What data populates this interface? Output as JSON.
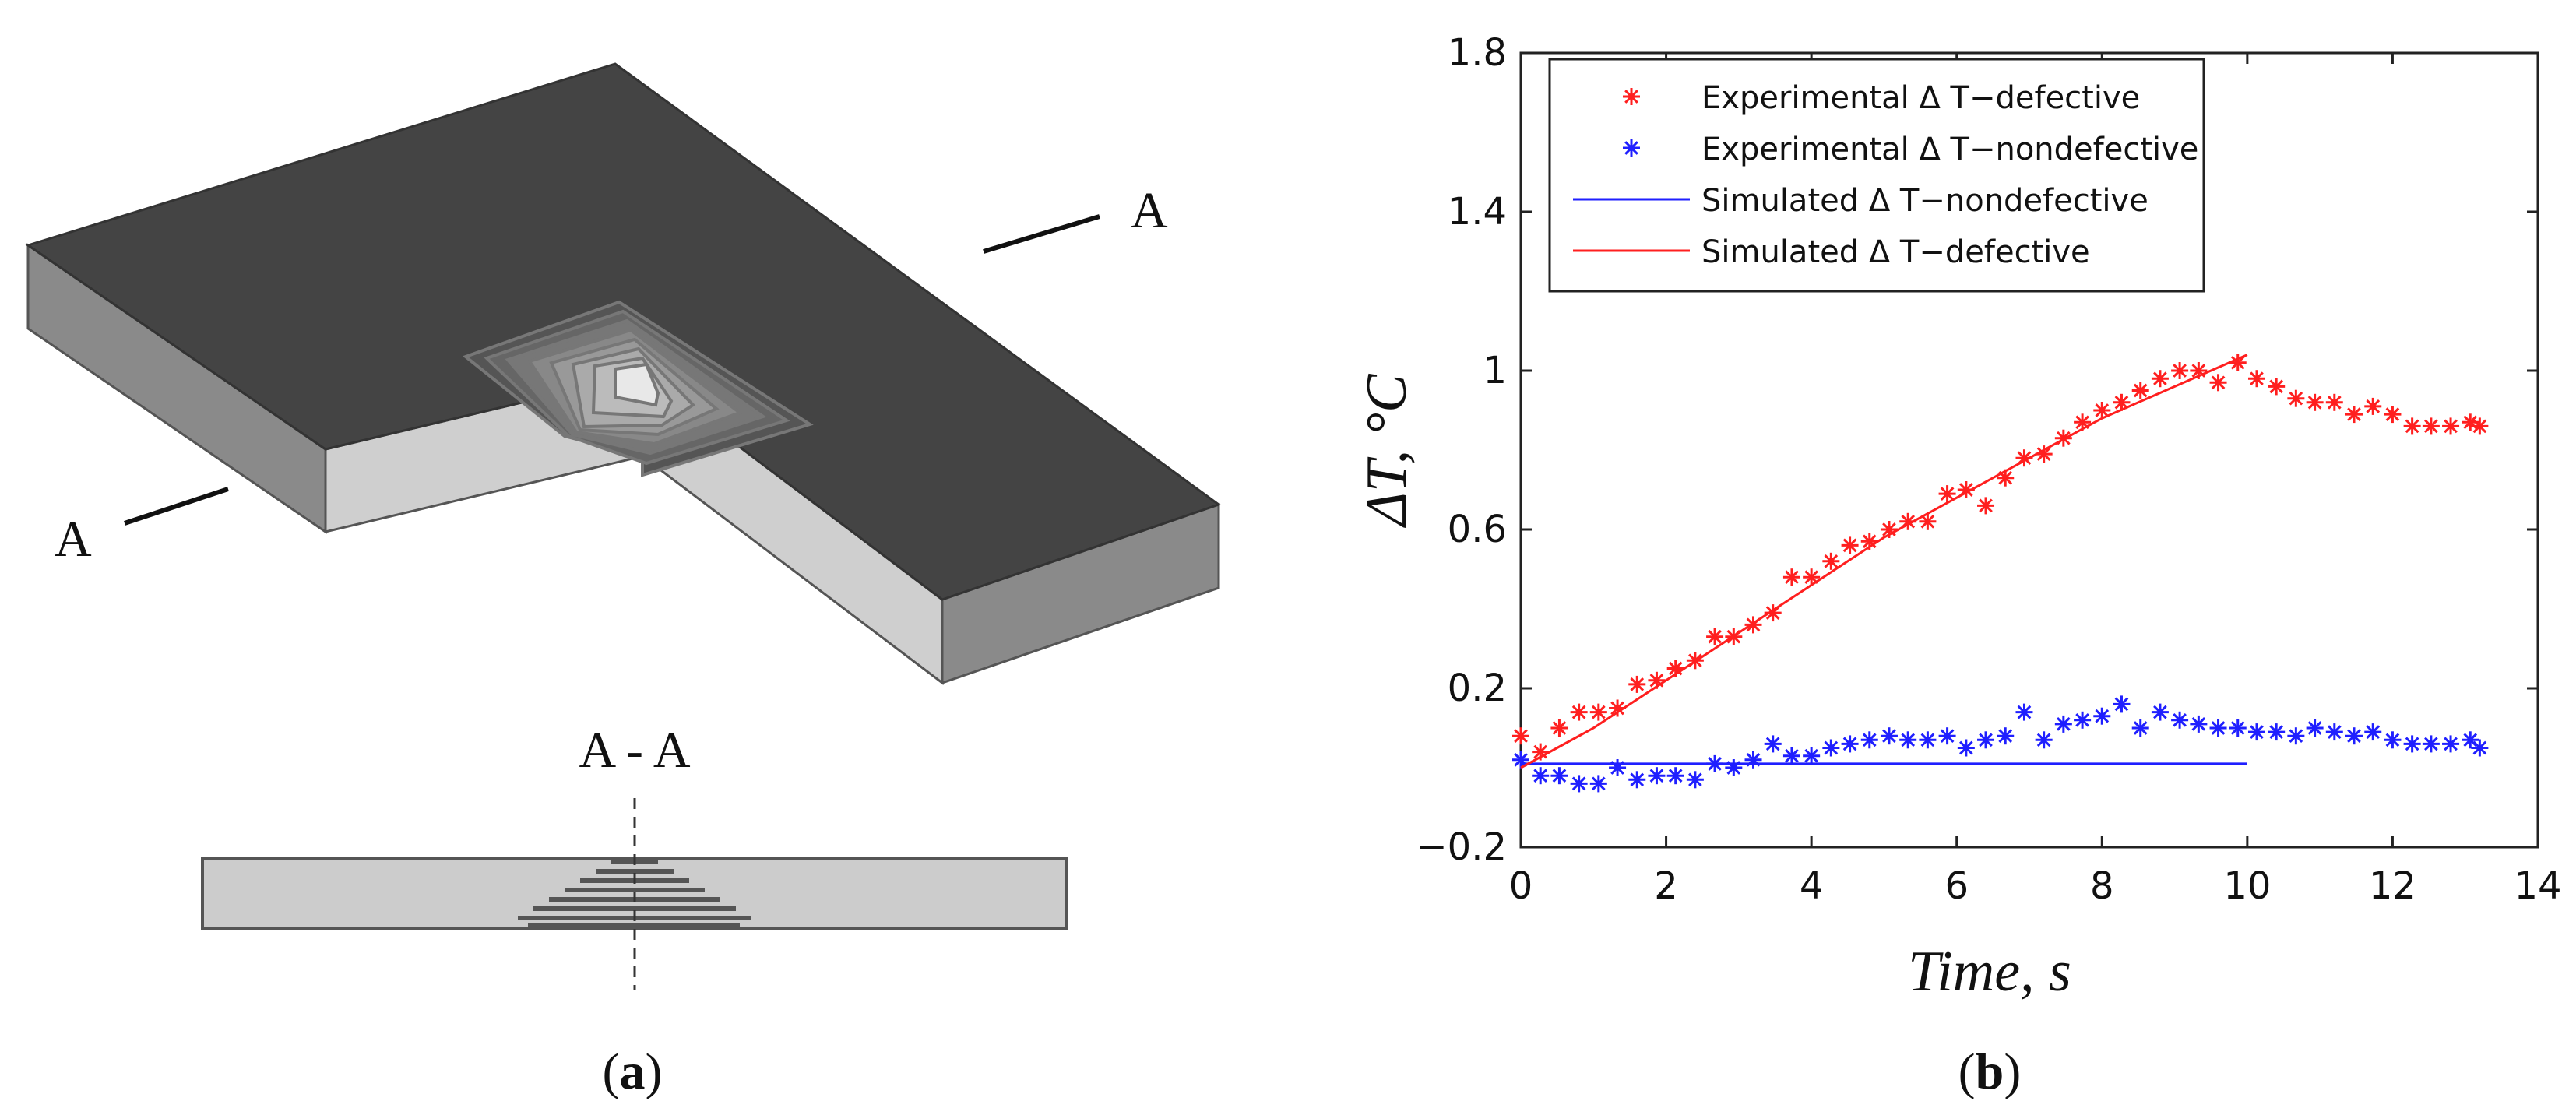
{
  "figure_a": {
    "section_label_left": "A",
    "section_label_right": "A",
    "section_title": "A - A",
    "caption": "(a)",
    "caption_letter": "a"
  },
  "figure_b": {
    "caption": "(b)",
    "caption_letter": "b"
  },
  "colors": {
    "defective": "#ff1f1f",
    "nondefective": "#1f1fff",
    "plate_top": "#444444",
    "plate_side_light": "#cccccc",
    "plate_side_dark": "#8a8a8a"
  },
  "chart_data": {
    "type": "scatter",
    "title": "",
    "xlabel": "Time, s",
    "ylabel": "ΔT, °C",
    "xlim": [
      0,
      14
    ],
    "ylim": [
      -0.2,
      1.8
    ],
    "xticks": [
      0,
      2,
      4,
      6,
      8,
      10,
      12,
      14
    ],
    "yticks": [
      -0.2,
      0.2,
      0.6,
      1,
      1.4,
      1.8
    ],
    "xtick_labels": [
      "0",
      "2",
      "4",
      "6",
      "8",
      "10",
      "12",
      "14"
    ],
    "ytick_labels": [
      "−0.2",
      "0.2",
      "0.6",
      "1",
      "1.4",
      "1.8"
    ],
    "legend_position": "top",
    "series": [
      {
        "name": "Experimental  Δ T−defective",
        "kind": "markers",
        "color": "#ff1f1f",
        "x": [
          0.0,
          0.27,
          0.53,
          0.8,
          1.07,
          1.33,
          1.6,
          1.87,
          2.13,
          2.4,
          2.67,
          2.93,
          3.2,
          3.47,
          3.73,
          4.0,
          4.27,
          4.53,
          4.8,
          5.07,
          5.33,
          5.6,
          5.87,
          6.13,
          6.4,
          6.67,
          6.93,
          7.2,
          7.47,
          7.73,
          8.0,
          8.27,
          8.53,
          8.8,
          9.07,
          9.33,
          9.6,
          9.87,
          10.13,
          10.4,
          10.67,
          10.93,
          11.2,
          11.47,
          11.73,
          12.0,
          12.27,
          12.53,
          12.8,
          13.07,
          13.2
        ],
        "y": [
          0.08,
          0.04,
          0.1,
          0.14,
          0.14,
          0.15,
          0.21,
          0.22,
          0.25,
          0.27,
          0.33,
          0.33,
          0.36,
          0.39,
          0.48,
          0.48,
          0.52,
          0.56,
          0.57,
          0.6,
          0.62,
          0.62,
          0.69,
          0.7,
          0.66,
          0.73,
          0.78,
          0.79,
          0.83,
          0.87,
          0.9,
          0.92,
          0.95,
          0.98,
          1.0,
          1.0,
          0.97,
          1.02,
          0.98,
          0.96,
          0.93,
          0.92,
          0.92,
          0.89,
          0.91,
          0.89,
          0.86,
          0.86,
          0.86,
          0.87,
          0.86
        ]
      },
      {
        "name": "Experimental  Δ T−nondefective",
        "kind": "markers",
        "color": "#1f1fff",
        "x": [
          0.0,
          0.27,
          0.53,
          0.8,
          1.07,
          1.33,
          1.6,
          1.87,
          2.13,
          2.4,
          2.67,
          2.93,
          3.2,
          3.47,
          3.73,
          4.0,
          4.27,
          4.53,
          4.8,
          5.07,
          5.33,
          5.6,
          5.87,
          6.13,
          6.4,
          6.67,
          6.93,
          7.2,
          7.47,
          7.73,
          8.0,
          8.27,
          8.53,
          8.8,
          9.07,
          9.33,
          9.6,
          9.87,
          10.13,
          10.4,
          10.67,
          10.93,
          11.2,
          11.47,
          11.73,
          12.0,
          12.27,
          12.53,
          12.8,
          13.07,
          13.2
        ],
        "y": [
          0.02,
          -0.02,
          -0.02,
          -0.04,
          -0.04,
          0.0,
          -0.03,
          -0.02,
          -0.02,
          -0.03,
          0.01,
          0.0,
          0.02,
          0.06,
          0.03,
          0.03,
          0.05,
          0.06,
          0.07,
          0.08,
          0.07,
          0.07,
          0.08,
          0.05,
          0.07,
          0.08,
          0.14,
          0.07,
          0.11,
          0.12,
          0.13,
          0.16,
          0.1,
          0.14,
          0.12,
          0.11,
          0.1,
          0.1,
          0.09,
          0.09,
          0.08,
          0.1,
          0.09,
          0.08,
          0.09,
          0.07,
          0.06,
          0.06,
          0.06,
          0.07,
          0.05
        ]
      },
      {
        "name": "Simulated  Δ T−nondefective",
        "kind": "line",
        "color": "#1f1fff",
        "x": [
          0,
          10
        ],
        "y": [
          0.01,
          0.01
        ]
      },
      {
        "name": "Simulated  Δ T−defective",
        "kind": "line",
        "color": "#ff1f1f",
        "x": [
          0,
          0.5,
          1,
          1.5,
          2,
          2.5,
          3,
          3.5,
          4,
          4.5,
          5,
          5.5,
          6,
          6.5,
          7,
          7.5,
          8,
          8.5,
          9,
          9.5,
          10
        ],
        "y": [
          0.0,
          0.05,
          0.1,
          0.16,
          0.22,
          0.28,
          0.34,
          0.4,
          0.46,
          0.52,
          0.58,
          0.63,
          0.68,
          0.73,
          0.78,
          0.83,
          0.88,
          0.92,
          0.96,
          1.0,
          1.04
        ]
      }
    ]
  }
}
